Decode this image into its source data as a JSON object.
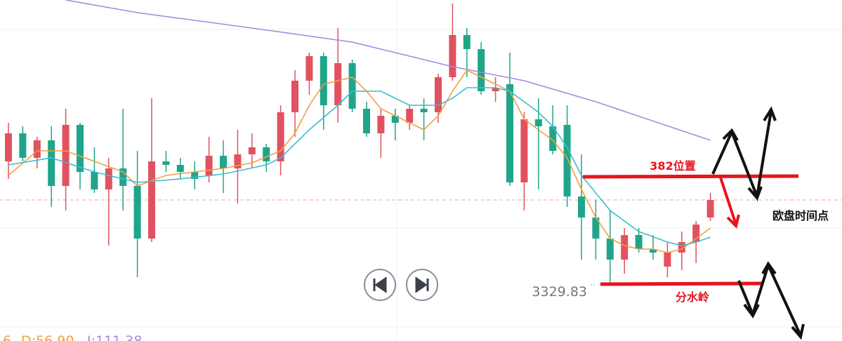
{
  "chart_data": {
    "type": "candlestick",
    "ylim": [
      3321.7,
      3370.3
    ],
    "up_color": "#e0525f",
    "down_color": "#1fa58a",
    "open": [
      3347.3,
      3351.3,
      3347.8,
      3350.3,
      3343.8,
      3352.5,
      3345.8,
      3343.3,
      3346.3,
      3343.8,
      3336.3,
      3347.3,
      3346.8,
      3345.8,
      3345.3,
      3348.1,
      3346.3,
      3348.3,
      3349.3,
      3347.3,
      3354.3,
      3358.8,
      3362.3,
      3355.3,
      3361.3,
      3354.8,
      3351.3,
      3353.8,
      3352.8,
      3354.8,
      3354.3,
      3359.3,
      3365.3,
      3363.3,
      3357.3,
      3358.3,
      3344.3,
      3353.3,
      3352.3,
      3352.5,
      3342.3,
      3339.3,
      3336.3,
      3333.3,
      3336.8,
      3334.8,
      3332.3,
      3334.3,
      3335.8,
      3339.3
    ],
    "high": [
      3352.8,
      3352.3,
      3350.8,
      3352.3,
      3354.8,
      3352.8,
      3349.3,
      3347.8,
      3354.8,
      3348.8,
      3356.3,
      3348.8,
      3347.8,
      3347.3,
      3350.8,
      3350.3,
      3351.8,
      3351.3,
      3349.8,
      3355.3,
      3360.3,
      3362.8,
      3362.8,
      3366.3,
      3361.8,
      3355.8,
      3354.8,
      3354.8,
      3355.3,
      3356.3,
      3359.8,
      3369.8,
      3366.3,
      3364.3,
      3359.3,
      3362.8,
      3354.3,
      3356.3,
      3355.3,
      3355.3,
      3348.3,
      3341.8,
      3340.3,
      3337.8,
      3337.8,
      3336.8,
      3335.8,
      3337.3,
      3338.8,
      3342.8
    ],
    "low": [
      3344.8,
      3347.3,
      3346.3,
      3340.8,
      3340.3,
      3343.3,
      3342.8,
      3335.3,
      3340.3,
      3330.8,
      3335.8,
      3345.8,
      3344.8,
      3343.3,
      3344.3,
      3342.8,
      3341.3,
      3346.3,
      3345.8,
      3345.3,
      3350.8,
      3356.8,
      3351.8,
      3352.8,
      3354.3,
      3350.8,
      3347.8,
      3350.3,
      3351.8,
      3350.3,
      3352.8,
      3358.8,
      3359.3,
      3356.8,
      3355.8,
      3343.8,
      3340.3,
      3343.3,
      3348.3,
      3340.8,
      3333.3,
      3333.3,
      3329.8,
      3331.3,
      3334.3,
      3333.3,
      3330.8,
      3331.8,
      3332.8,
      3338.8
    ],
    "close": [
      3351.3,
      3347.8,
      3350.3,
      3343.8,
      3352.5,
      3345.8,
      3343.3,
      3346.3,
      3343.8,
      3336.3,
      3347.3,
      3346.8,
      3345.8,
      3344.8,
      3348.1,
      3346.3,
      3348.3,
      3349.3,
      3347.3,
      3354.3,
      3358.8,
      3362.3,
      3355.3,
      3361.3,
      3354.8,
      3351.3,
      3353.8,
      3352.8,
      3354.8,
      3354.3,
      3359.3,
      3365.3,
      3363.3,
      3357.3,
      3357.8,
      3344.3,
      3353.3,
      3352.3,
      3348.8,
      3342.3,
      3339.3,
      3336.3,
      3333.3,
      3336.8,
      3334.8,
      3334.3,
      3334.3,
      3335.8,
      3338.3,
      3341.8
    ],
    "series": [
      {
        "color": "#f0a040",
        "x": [
          0,
          2,
          4,
          6,
          8,
          9,
          11,
          13,
          15,
          17,
          19,
          20,
          21,
          22,
          24,
          25,
          26,
          28,
          29,
          30,
          31,
          32,
          33,
          34,
          35,
          36,
          37,
          38,
          39,
          40,
          41,
          42,
          43,
          44,
          45,
          46,
          47,
          48,
          49
        ],
        "values": [
          3345.3,
          3348.8,
          3348.8,
          3347.3,
          3345.8,
          3343.8,
          3345.3,
          3345.8,
          3346.3,
          3347.1,
          3348.8,
          3351.3,
          3355.3,
          3358.3,
          3359.3,
          3357.3,
          3354.8,
          3352.8,
          3351.8,
          3353.8,
          3357.3,
          3360.3,
          3359.3,
          3358.3,
          3357.3,
          3353.3,
          3351.8,
          3350.3,
          3347.8,
          3343.3,
          3339.3,
          3336.3,
          3335.3,
          3334.8,
          3334.8,
          3334.3,
          3334.8,
          3336.3,
          3337.8
        ]
      },
      {
        "color": "#3cbcd0",
        "x": [
          0,
          3,
          6,
          9,
          12,
          15,
          18,
          19,
          21,
          23,
          24,
          26,
          28,
          30,
          31,
          32,
          34,
          35,
          36,
          37,
          38,
          39,
          40,
          41,
          42,
          44,
          46,
          47,
          48,
          49
        ],
        "values": [
          3346.8,
          3347.8,
          3345.8,
          3344.3,
          3344.8,
          3345.5,
          3346.8,
          3347.8,
          3351.8,
          3355.3,
          3357.3,
          3357.3,
          3355.3,
          3355.3,
          3356.3,
          3357.8,
          3357.8,
          3357.3,
          3355.8,
          3354.3,
          3352.3,
          3349.3,
          3345.3,
          3342.8,
          3340.3,
          3337.3,
          3335.8,
          3335.3,
          3335.8,
          3336.5
        ]
      },
      {
        "color": "#a889e0",
        "x": [
          4,
          9,
          17,
          24,
          31,
          36,
          41,
          49
        ],
        "values": [
          3370.3,
          3368.5,
          3366.3,
          3364.3,
          3360.8,
          3358.8,
          3355.8,
          3350.3
        ]
      }
    ],
    "price_line": 3341.8,
    "low_label": "3329.83",
    "annotations": [
      "382位置",
      "欧盘时间点",
      "分水岭"
    ],
    "indicator": [
      "6",
      "D:56.90",
      "J:111.38"
    ]
  }
}
